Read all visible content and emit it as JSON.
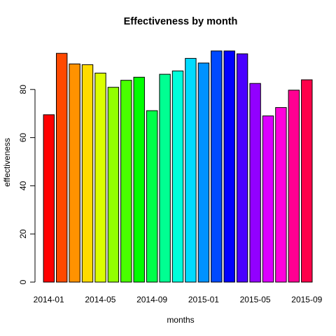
{
  "chart_data": {
    "type": "bar",
    "title": "Effectiveness by month",
    "xlabel": "months",
    "ylabel": "effectiveness",
    "ylim": [
      0,
      100
    ],
    "yticks": [
      0,
      20,
      40,
      60,
      80
    ],
    "categories": [
      "2014-01",
      "2014-02",
      "2014-03",
      "2014-04",
      "2014-05",
      "2014-06",
      "2014-07",
      "2014-08",
      "2014-09",
      "2014-10",
      "2014-11",
      "2014-12",
      "2015-01",
      "2015-02",
      "2015-03",
      "2015-04",
      "2015-05",
      "2015-06",
      "2015-07",
      "2015-08",
      "2015-09"
    ],
    "x_tick_labels": [
      "2014-01",
      "2014-05",
      "2014-09",
      "2015-01",
      "2015-05",
      "2015-09"
    ],
    "values": [
      69.5,
      95,
      90.6,
      90.3,
      86.8,
      80.9,
      83.8,
      85.1,
      71.2,
      86.3,
      87.7,
      92.9,
      91,
      96,
      96,
      94.8,
      82.5,
      69,
      72.5,
      79.7,
      84
    ],
    "colors": [
      "#FF0000",
      "#FF4900",
      "#FF9200",
      "#FFDB00",
      "#DBFF00",
      "#92FF00",
      "#49FF00",
      "#00FF00",
      "#00FF49",
      "#00FF92",
      "#00FFDB",
      "#00DBFF",
      "#0092FF",
      "#0049FF",
      "#0000FF",
      "#4900FF",
      "#9200FF",
      "#DB00FF",
      "#FF00DB",
      "#FF0092",
      "#FF0049"
    ],
    "grid": false,
    "legend": "none"
  }
}
